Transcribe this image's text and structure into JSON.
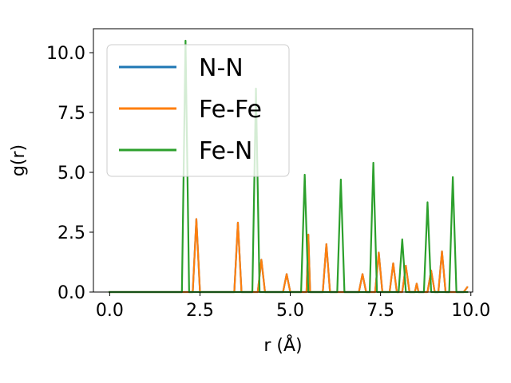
{
  "chart_data": {
    "type": "line",
    "title": "",
    "xlabel": "r (Å)",
    "ylabel": "g(r)",
    "xlim": [
      -0.45,
      10.05
    ],
    "ylim": [
      0,
      11.0
    ],
    "xticks": [
      0.0,
      2.5,
      5.0,
      7.5,
      10.0
    ],
    "xtick_labels": [
      "0.0",
      "2.5",
      "5.0",
      "7.5",
      "10.0"
    ],
    "yticks": [
      0.0,
      2.5,
      5.0,
      7.5,
      10.0
    ],
    "ytick_labels": [
      "0.0",
      "2.5",
      "5.0",
      "7.5",
      "10.0"
    ],
    "grid": false,
    "legend_position": "top-left",
    "series": [
      {
        "name": "N-N",
        "color": "#1f77b4",
        "x": [
          0.0,
          2.3,
          2.4,
          2.5,
          3.45,
          3.55,
          3.65,
          4.1,
          4.2,
          4.3,
          4.8,
          4.9,
          5.0,
          5.45,
          5.5,
          5.55,
          5.9,
          6.0,
          6.1,
          6.9,
          7.0,
          7.1,
          7.35,
          7.45,
          7.55,
          7.75,
          7.85,
          7.95,
          8.1,
          8.2,
          8.3,
          8.45,
          8.5,
          8.55,
          8.8,
          8.9,
          9.0,
          9.1,
          9.2,
          9.3,
          9.8,
          9.9
        ],
        "y": [
          0,
          0,
          3.05,
          0,
          0,
          2.9,
          0,
          0,
          1.35,
          0,
          0,
          0.75,
          0,
          0,
          2.4,
          0,
          0,
          2.0,
          0,
          0,
          0.75,
          0,
          0,
          1.65,
          0,
          0,
          1.2,
          0,
          0,
          1.1,
          0,
          0,
          0.35,
          0,
          0,
          0.9,
          0,
          0,
          1.7,
          0,
          0,
          0.2
        ]
      },
      {
        "name": "Fe-Fe",
        "color": "#ff7f0e",
        "x": [
          0.0,
          2.3,
          2.4,
          2.5,
          3.45,
          3.55,
          3.65,
          4.1,
          4.2,
          4.3,
          4.8,
          4.9,
          5.0,
          5.45,
          5.5,
          5.55,
          5.9,
          6.0,
          6.1,
          6.9,
          7.0,
          7.1,
          7.35,
          7.45,
          7.55,
          7.75,
          7.85,
          7.95,
          8.1,
          8.2,
          8.3,
          8.45,
          8.5,
          8.55,
          8.8,
          8.9,
          9.0,
          9.1,
          9.2,
          9.3,
          9.8,
          9.9
        ],
        "y": [
          0,
          0,
          3.05,
          0,
          0,
          2.9,
          0,
          0,
          1.35,
          0,
          0,
          0.75,
          0,
          0,
          2.4,
          0,
          0,
          2.0,
          0,
          0,
          0.75,
          0,
          0,
          1.65,
          0,
          0,
          1.2,
          0,
          0,
          1.1,
          0,
          0,
          0.35,
          0,
          0,
          0.9,
          0,
          0,
          1.7,
          0,
          0,
          0.2
        ]
      },
      {
        "name": "Fe-N",
        "color": "#2ca02c",
        "x": [
          0.0,
          2.0,
          2.1,
          2.2,
          3.95,
          4.05,
          4.15,
          5.3,
          5.4,
          5.5,
          6.3,
          6.4,
          6.5,
          7.2,
          7.3,
          7.4,
          8.0,
          8.1,
          8.2,
          8.7,
          8.8,
          8.9,
          9.4,
          9.5,
          9.6,
          9.9
        ],
        "y": [
          0,
          0,
          10.5,
          0,
          0,
          8.5,
          0,
          0,
          4.9,
          0,
          0,
          4.7,
          0,
          0,
          5.4,
          0,
          0,
          2.2,
          0,
          0,
          3.75,
          0,
          0,
          4.8,
          0,
          0
        ]
      }
    ]
  }
}
